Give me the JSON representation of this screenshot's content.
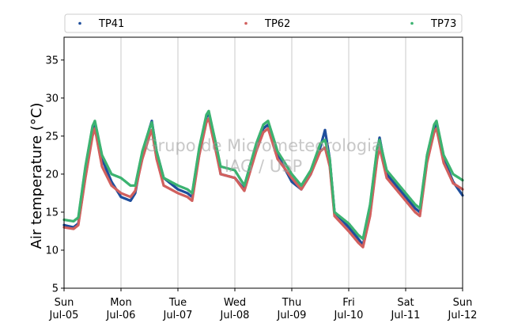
{
  "chart_data": {
    "type": "scatter",
    "title": "",
    "xlabel": "",
    "ylabel": "Air temperature (°C)",
    "ylim": [
      5,
      38
    ],
    "xlim": [
      "2020-07-05",
      "2020-07-12"
    ],
    "yticks": [
      5,
      10,
      15,
      20,
      25,
      30,
      35
    ],
    "xticks": [
      {
        "date": "2020-07-05",
        "day": "Sun",
        "label": "Jul-05"
      },
      {
        "date": "2020-07-06",
        "day": "Mon",
        "label": "Jul-06"
      },
      {
        "date": "2020-07-07",
        "day": "Tue",
        "label": "Jul-07"
      },
      {
        "date": "2020-07-08",
        "day": "Wed",
        "label": "Jul-08"
      },
      {
        "date": "2020-07-09",
        "day": "Thu",
        "label": "Jul-09"
      },
      {
        "date": "2020-07-10",
        "day": "Fri",
        "label": "Jul-10"
      },
      {
        "date": "2020-07-11",
        "day": "Sat",
        "label": "Jul-11"
      },
      {
        "date": "2020-07-12",
        "day": "Sun",
        "label": "Jul-12"
      }
    ],
    "grid": "vertical",
    "legend_position": "top",
    "watermark": [
      "Grupo de Micrometeorologia",
      "IAG / USP"
    ],
    "series": [
      {
        "name": "TP41",
        "color": "#1f4e9c",
        "points": [
          [
            "2020-07-05 00:00",
            13.3
          ],
          [
            "2020-07-05 04:00",
            13.0
          ],
          [
            "2020-07-05 06:00",
            13.5
          ],
          [
            "2020-07-05 09:00",
            20.0
          ],
          [
            "2020-07-05 12:00",
            25.5
          ],
          [
            "2020-07-05 13:00",
            26.8
          ],
          [
            "2020-07-05 16:00",
            22.0
          ],
          [
            "2020-07-05 20:00",
            19.0
          ],
          [
            "2020-07-06 00:00",
            17.0
          ],
          [
            "2020-07-06 04:00",
            16.5
          ],
          [
            "2020-07-06 06:00",
            17.5
          ],
          [
            "2020-07-06 09:00",
            22.5
          ],
          [
            "2020-07-06 12:00",
            26.0
          ],
          [
            "2020-07-06 13:00",
            27.0
          ],
          [
            "2020-07-06 15:00",
            23.0
          ],
          [
            "2020-07-06 18:00",
            19.5
          ],
          [
            "2020-07-07 00:00",
            18.0
          ],
          [
            "2020-07-07 04:00",
            17.5
          ],
          [
            "2020-07-07 06:00",
            17.0
          ],
          [
            "2020-07-07 09:00",
            23.0
          ],
          [
            "2020-07-07 12:00",
            27.5
          ],
          [
            "2020-07-07 13:00",
            28.0
          ],
          [
            "2020-07-07 16:00",
            24.0
          ],
          [
            "2020-07-07 18:00",
            20.0
          ],
          [
            "2020-07-08 00:00",
            19.5
          ],
          [
            "2020-07-08 04:00",
            18.0
          ],
          [
            "2020-07-08 09:00",
            23.5
          ],
          [
            "2020-07-08 12:00",
            26.0
          ],
          [
            "2020-07-08 14:00",
            26.5
          ],
          [
            "2020-07-08 18:00",
            22.5
          ],
          [
            "2020-07-09 00:00",
            19.0
          ],
          [
            "2020-07-09 04:00",
            18.0
          ],
          [
            "2020-07-09 08:00",
            20.0
          ],
          [
            "2020-07-09 12:00",
            23.5
          ],
          [
            "2020-07-09 14:00",
            25.8
          ],
          [
            "2020-07-09 16:00",
            22.0
          ],
          [
            "2020-07-09 18:00",
            15.0
          ],
          [
            "2020-07-10 00:00",
            13.0
          ],
          [
            "2020-07-10 04:00",
            11.5
          ],
          [
            "2020-07-10 06:00",
            10.7
          ],
          [
            "2020-07-10 09:00",
            15.0
          ],
          [
            "2020-07-10 12:00",
            23.0
          ],
          [
            "2020-07-10 13:00",
            24.8
          ],
          [
            "2020-07-10 16:00",
            20.0
          ],
          [
            "2020-07-11 00:00",
            17.0
          ],
          [
            "2020-07-11 04:00",
            15.5
          ],
          [
            "2020-07-11 06:00",
            15.0
          ],
          [
            "2020-07-11 09:00",
            22.0
          ],
          [
            "2020-07-11 12:00",
            26.0
          ],
          [
            "2020-07-11 13:00",
            26.5
          ],
          [
            "2020-07-11 16:00",
            22.0
          ],
          [
            "2020-07-11 20:00",
            19.0
          ],
          [
            "2020-07-12 00:00",
            17.2
          ]
        ]
      },
      {
        "name": "TP62",
        "color": "#d1605e",
        "points": [
          [
            "2020-07-05 00:00",
            13.0
          ],
          [
            "2020-07-05 04:00",
            12.8
          ],
          [
            "2020-07-05 06:00",
            13.3
          ],
          [
            "2020-07-05 09:00",
            19.5
          ],
          [
            "2020-07-05 12:00",
            25.0
          ],
          [
            "2020-07-05 13:00",
            26.0
          ],
          [
            "2020-07-05 16:00",
            21.0
          ],
          [
            "2020-07-05 20:00",
            18.5
          ],
          [
            "2020-07-06 00:00",
            17.5
          ],
          [
            "2020-07-06 04:00",
            17.0
          ],
          [
            "2020-07-06 06:00",
            17.8
          ],
          [
            "2020-07-06 09:00",
            22.0
          ],
          [
            "2020-07-06 12:00",
            25.0
          ],
          [
            "2020-07-06 13:00",
            25.8
          ],
          [
            "2020-07-06 15:00",
            22.0
          ],
          [
            "2020-07-06 18:00",
            18.5
          ],
          [
            "2020-07-07 00:00",
            17.5
          ],
          [
            "2020-07-07 04:00",
            17.0
          ],
          [
            "2020-07-07 06:00",
            16.5
          ],
          [
            "2020-07-07 09:00",
            22.5
          ],
          [
            "2020-07-07 12:00",
            26.8
          ],
          [
            "2020-07-07 13:00",
            27.3
          ],
          [
            "2020-07-07 16:00",
            23.0
          ],
          [
            "2020-07-07 18:00",
            20.0
          ],
          [
            "2020-07-08 00:00",
            19.5
          ],
          [
            "2020-07-08 04:00",
            17.8
          ],
          [
            "2020-07-08 09:00",
            23.0
          ],
          [
            "2020-07-08 12:00",
            25.5
          ],
          [
            "2020-07-08 14:00",
            26.0
          ],
          [
            "2020-07-08 18:00",
            22.0
          ],
          [
            "2020-07-09 00:00",
            19.5
          ],
          [
            "2020-07-09 04:00",
            18.0
          ],
          [
            "2020-07-09 08:00",
            20.0
          ],
          [
            "2020-07-09 12:00",
            23.0
          ],
          [
            "2020-07-09 14:00",
            23.5
          ],
          [
            "2020-07-09 16:00",
            21.0
          ],
          [
            "2020-07-09 18:00",
            14.5
          ],
          [
            "2020-07-10 00:00",
            12.5
          ],
          [
            "2020-07-10 04:00",
            11.0
          ],
          [
            "2020-07-10 06:00",
            10.4
          ],
          [
            "2020-07-10 09:00",
            14.5
          ],
          [
            "2020-07-10 12:00",
            22.0
          ],
          [
            "2020-07-10 13:00",
            23.5
          ],
          [
            "2020-07-10 16:00",
            19.5
          ],
          [
            "2020-07-11 00:00",
            16.5
          ],
          [
            "2020-07-11 04:00",
            15.0
          ],
          [
            "2020-07-11 06:00",
            14.5
          ],
          [
            "2020-07-11 09:00",
            21.5
          ],
          [
            "2020-07-11 12:00",
            25.5
          ],
          [
            "2020-07-11 13:00",
            26.0
          ],
          [
            "2020-07-11 16:00",
            21.5
          ],
          [
            "2020-07-11 20:00",
            18.8
          ],
          [
            "2020-07-12 00:00",
            18.0
          ]
        ]
      },
      {
        "name": "TP73",
        "color": "#3cb371",
        "points": [
          [
            "2020-07-05 00:00",
            14.0
          ],
          [
            "2020-07-05 04:00",
            13.8
          ],
          [
            "2020-07-05 06:00",
            14.3
          ],
          [
            "2020-07-05 09:00",
            21.0
          ],
          [
            "2020-07-05 12:00",
            26.3
          ],
          [
            "2020-07-05 13:00",
            27.0
          ],
          [
            "2020-07-05 16:00",
            22.5
          ],
          [
            "2020-07-05 20:00",
            20.0
          ],
          [
            "2020-07-06 00:00",
            19.5
          ],
          [
            "2020-07-06 04:00",
            18.5
          ],
          [
            "2020-07-06 06:00",
            18.5
          ],
          [
            "2020-07-06 09:00",
            23.0
          ],
          [
            "2020-07-06 12:00",
            26.0
          ],
          [
            "2020-07-06 13:00",
            26.8
          ],
          [
            "2020-07-06 15:00",
            23.0
          ],
          [
            "2020-07-06 18:00",
            19.5
          ],
          [
            "2020-07-07 00:00",
            18.5
          ],
          [
            "2020-07-07 04:00",
            18.0
          ],
          [
            "2020-07-07 06:00",
            17.5
          ],
          [
            "2020-07-07 09:00",
            23.5
          ],
          [
            "2020-07-07 12:00",
            27.8
          ],
          [
            "2020-07-07 13:00",
            28.3
          ],
          [
            "2020-07-07 16:00",
            24.0
          ],
          [
            "2020-07-07 18:00",
            21.0
          ],
          [
            "2020-07-08 00:00",
            20.5
          ],
          [
            "2020-07-08 04:00",
            18.5
          ],
          [
            "2020-07-08 09:00",
            24.0
          ],
          [
            "2020-07-08 12:00",
            26.5
          ],
          [
            "2020-07-08 14:00",
            27.0
          ],
          [
            "2020-07-08 18:00",
            23.0
          ],
          [
            "2020-07-09 00:00",
            20.0
          ],
          [
            "2020-07-09 04:00",
            18.5
          ],
          [
            "2020-07-09 08:00",
            20.5
          ],
          [
            "2020-07-09 12:00",
            24.0
          ],
          [
            "2020-07-09 14:00",
            24.5
          ],
          [
            "2020-07-09 16:00",
            22.0
          ],
          [
            "2020-07-09 18:00",
            15.0
          ],
          [
            "2020-07-10 00:00",
            13.5
          ],
          [
            "2020-07-10 04:00",
            12.0
          ],
          [
            "2020-07-10 06:00",
            11.5
          ],
          [
            "2020-07-10 09:00",
            16.0
          ],
          [
            "2020-07-10 12:00",
            23.5
          ],
          [
            "2020-07-10 13:00",
            24.5
          ],
          [
            "2020-07-10 16:00",
            20.5
          ],
          [
            "2020-07-11 00:00",
            17.5
          ],
          [
            "2020-07-11 04:00",
            16.0
          ],
          [
            "2020-07-11 06:00",
            15.5
          ],
          [
            "2020-07-11 09:00",
            22.5
          ],
          [
            "2020-07-11 12:00",
            26.5
          ],
          [
            "2020-07-11 13:00",
            27.0
          ],
          [
            "2020-07-11 16:00",
            22.5
          ],
          [
            "2020-07-11 20:00",
            20.0
          ],
          [
            "2020-07-12 00:00",
            19.2
          ]
        ]
      }
    ]
  }
}
